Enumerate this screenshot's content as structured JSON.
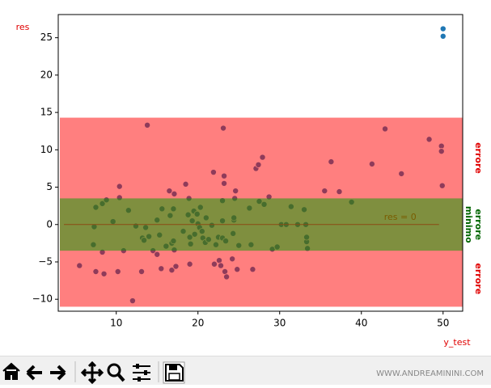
{
  "chart_data": {
    "type": "scatter",
    "ylabel": "res",
    "xlabel": "y_test",
    "label_color": "#e00000",
    "xlim": [
      2.9,
      52.4
    ],
    "ylim": [
      -11.6,
      28.1
    ],
    "xticks": [
      10,
      20,
      30,
      40,
      50
    ],
    "yticks": [
      {
        "value": -10,
        "label": "−10"
      },
      {
        "value": -5,
        "label": "−5"
      },
      0,
      5,
      10,
      15,
      20,
      25
    ],
    "color": "#1f77b4",
    "x": [
      5.5,
      7.2,
      7.3,
      7.5,
      7.5,
      8.3,
      8.3,
      8.5,
      8.8,
      9.6,
      10.2,
      10.4,
      10.4,
      10.9,
      11.5,
      12.0,
      12.4,
      13.1,
      13.2,
      13.4,
      13.6,
      13.8,
      14.0,
      14.5,
      15.0,
      15.0,
      15.3,
      15.5,
      15.6,
      16.1,
      16.5,
      16.6,
      16.8,
      16.8,
      17.0,
      17.1,
      17.1,
      17.3,
      17.0,
      18.2,
      18.5,
      18.8,
      18.9,
      19.0,
      19.0,
      19.1,
      19.3,
      19.5,
      19.6,
      19.9,
      20.0,
      20.2,
      20.3,
      20.5,
      20.6,
      20.9,
      21.0,
      21.3,
      21.7,
      21.9,
      22.0,
      22.2,
      22.5,
      22.6,
      22.8,
      23.0,
      23.0,
      23.1,
      23.0,
      23.2,
      23.2,
      23.3,
      23.4,
      23.5,
      24.2,
      24.3,
      24.4,
      24.4,
      24.5,
      24.6,
      24.8,
      25.0,
      26.3,
      26.5,
      26.7,
      27.1,
      27.4,
      27.5,
      27.9,
      28.1,
      28.7,
      29.1,
      29.7,
      30.2,
      30.8,
      31.4,
      32.2,
      33.0,
      33.2,
      33.3,
      33.3,
      33.4,
      35.5,
      36.3,
      37.3,
      38.8,
      41.3,
      42.9,
      44.9,
      48.3,
      49.8,
      49.8,
      49.9,
      50.0,
      50.0
    ],
    "values": [
      -5.5,
      -2.7,
      -0.3,
      2.3,
      -6.3,
      -3.7,
      2.8,
      -6.6,
      3.3,
      0.4,
      -6.3,
      3.6,
      5.1,
      -3.5,
      1.9,
      -10.2,
      -0.2,
      -6.3,
      -1.8,
      -2.1,
      -0.4,
      13.3,
      -1.6,
      -3.5,
      -4.0,
      0.6,
      -1.4,
      -5.9,
      2.1,
      -2.9,
      4.5,
      1.2,
      -6.1,
      -2.5,
      -2.2,
      -3.4,
      4.1,
      -5.6,
      2.1,
      -0.9,
      5.4,
      1.3,
      3.5,
      -5.3,
      -1.7,
      -2.6,
      0.5,
      1.8,
      -1.3,
      1.4,
      0.1,
      -0.4,
      2.3,
      -0.9,
      -1.8,
      -2.4,
      0.9,
      -2.0,
      -0.1,
      7.0,
      -5.3,
      -2.7,
      -1.7,
      -4.8,
      -5.5,
      -1.8,
      3.2,
      12.9,
      0.5,
      6.5,
      5.5,
      -6.3,
      -2.2,
      -7.0,
      -4.6,
      -1.2,
      0.6,
      0.9,
      3.5,
      4.5,
      -6.0,
      -2.8,
      2.2,
      -2.7,
      -6.0,
      7.5,
      8.0,
      3.1,
      9.0,
      2.7,
      3.7,
      -3.3,
      -3.0,
      0.0,
      0.0,
      2.4,
      0.0,
      2.0,
      0.0,
      -2.3,
      -1.7,
      -3.2,
      4.5,
      8.4,
      4.4,
      3.0,
      8.1,
      12.8,
      6.8,
      11.4,
      10.5,
      9.8,
      5.2,
      26.2,
      25.2
    ],
    "bands": [
      {
        "y0": -11.0,
        "y1": 14.3,
        "color": "#ff0000"
      },
      {
        "y0": -3.5,
        "y1": 3.5,
        "color": "#00a000"
      }
    ],
    "hline": {
      "y": 0,
      "x0": 3.6,
      "x1": 49.5,
      "color": "#8b4a13",
      "label": "res = 0"
    },
    "annotations": [
      {
        "lines": [
          "errore"
        ],
        "color": "#e00000"
      },
      {
        "lines": [
          "errore",
          "minimo"
        ],
        "color": "#006400"
      },
      {
        "lines": [
          "errore"
        ],
        "color": "#e00000"
      }
    ]
  },
  "toolbar": {
    "watermark": "WWW.ANDREAMININI.COM"
  }
}
